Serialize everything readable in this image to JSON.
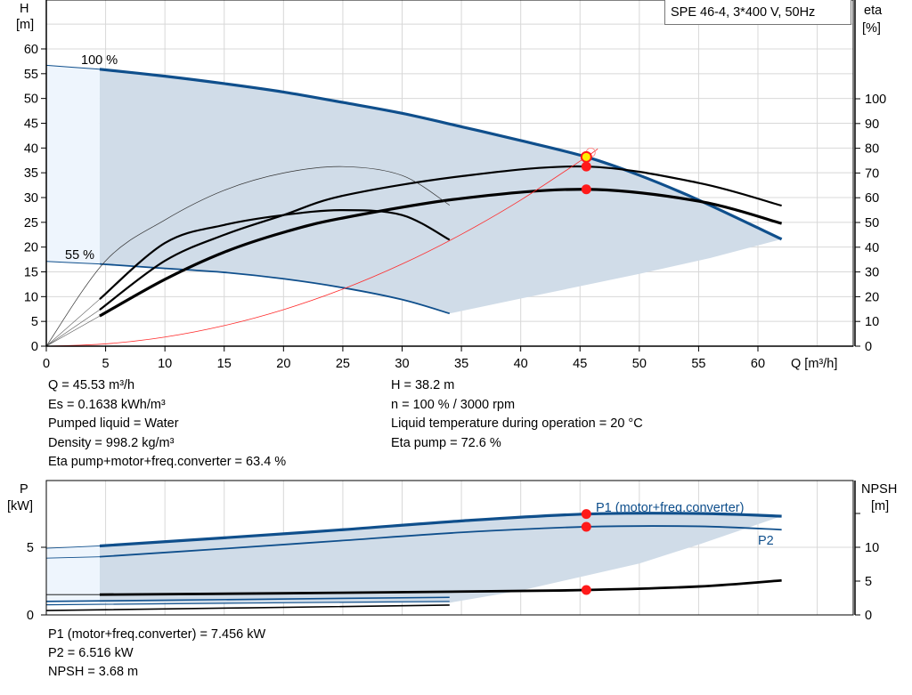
{
  "title": "SPE 46-4, 3*400 V, 50Hz",
  "colors": {
    "curve_blue": "#0f4f8c",
    "area": "#d0dce8",
    "area_light": "#eef5fd",
    "grid": "#d8d8d8",
    "system_curve": "#ff2a2a",
    "duty_point": "#ff1a1a",
    "duty_point_fill": "#ffee00"
  },
  "chart_data": [
    {
      "type": "line",
      "title": "SPE 46-4, 3*400 V, 50Hz",
      "xlabel": "Q [m³/h]",
      "ylabel": "H [m]",
      "y2label": "eta [%]",
      "xlim": [
        0,
        67
      ],
      "ylim": [
        0,
        70
      ],
      "y2lim": [
        0,
        140
      ],
      "xticks": [
        "0",
        "5",
        "10",
        "15",
        "20",
        "25",
        "30",
        "35",
        "40",
        "45",
        "50",
        "55",
        "60"
      ],
      "yticks": [
        "0",
        "5",
        "10",
        "15",
        "20",
        "25",
        "30",
        "35",
        "40",
        "45",
        "50",
        "55",
        "60"
      ],
      "y2ticks": [
        "0",
        "10",
        "20",
        "30",
        "40",
        "50",
        "60",
        "70",
        "80",
        "90",
        "100"
      ],
      "grid": true,
      "series": [
        {
          "name": "100 %",
          "axis": "H",
          "x": [
            0,
            4.5,
            10,
            15,
            20,
            25,
            30,
            35,
            40,
            45.53,
            50,
            55,
            62
          ],
          "y": [
            56.7,
            55.9,
            54.5,
            53,
            51.3,
            49.2,
            47,
            44.3,
            41.5,
            38.2,
            34.5,
            29.5,
            21.6
          ]
        },
        {
          "name": "55 %",
          "axis": "H",
          "x": [
            0,
            4.5,
            10,
            15,
            20,
            25,
            30,
            34
          ],
          "y": [
            17.1,
            16.6,
            15.7,
            14.9,
            13.6,
            11.8,
            9.4,
            6.6
          ]
        },
        {
          "axis": "eta",
          "x": [
            4.5,
            10,
            15,
            20,
            25,
            35,
            45.53,
            55,
            62
          ],
          "y": [
            14.7,
            34.5,
            45,
            53,
            60.8,
            68.7,
            72.6,
            66,
            56.8
          ]
        },
        {
          "axis": "eta",
          "x": [
            4.5,
            10,
            15,
            20,
            25,
            35,
            45.53,
            55,
            62
          ],
          "y": [
            12.2,
            27,
            38,
            46,
            51.8,
            59.7,
            63.4,
            58.6,
            49.6
          ]
        },
        {
          "axis": "eta",
          "x": [
            4.5,
            10,
            15,
            20,
            25,
            30,
            34
          ],
          "y": [
            19,
            41.7,
            49,
            53,
            55,
            53,
            43
          ]
        },
        {
          "axis": "eta",
          "x": [
            0,
            5,
            10,
            15,
            20,
            25,
            30,
            34
          ],
          "y": [
            0,
            34.5,
            51,
            63,
            70,
            72.6,
            69,
            57
          ]
        },
        {
          "axis": "H",
          "system_curve": true,
          "x": [
            0,
            5,
            10,
            15,
            20,
            25,
            30,
            35,
            40,
            45.53,
            46.5
          ],
          "y": [
            0,
            0.46,
            1.84,
            4.15,
            7.37,
            11.52,
            16.59,
            22.58,
            29.49,
            38.2,
            39.85
          ]
        }
      ],
      "duty_point": {
        "Q": 45.53,
        "H": 38.2,
        "eta_pump": 72.6,
        "eta_total": 63.4
      }
    },
    {
      "type": "line",
      "ylabel": "P [kW]",
      "y2label": "NPSH [m]",
      "xlim": [
        0,
        67
      ],
      "ylim": [
        0,
        10
      ],
      "y2lim": [
        0,
        20
      ],
      "yticks": [
        "0",
        "5"
      ],
      "y2ticks": [
        "0",
        "5",
        "10"
      ],
      "grid": true,
      "series": [
        {
          "name": "P1 (motor+freq.converter)",
          "axis": "P",
          "x": [
            0,
            4.5,
            15,
            25,
            35,
            45.53,
            55,
            62
          ],
          "y": [
            4.93,
            5.1,
            5.7,
            6.3,
            6.95,
            7.456,
            7.5,
            7.3
          ]
        },
        {
          "name": "P2",
          "axis": "P",
          "x": [
            0,
            4.5,
            15,
            25,
            35,
            45.53,
            55,
            62
          ],
          "y": [
            4.2,
            4.3,
            4.9,
            5.5,
            6.1,
            6.516,
            6.55,
            6.3
          ]
        },
        {
          "axis": "NPSH",
          "x": [
            0,
            4.5,
            20,
            35,
            45.53,
            55,
            62
          ],
          "y": [
            3.0,
            3.0,
            3.2,
            3.45,
            3.68,
            4.2,
            5.1
          ]
        },
        {
          "axis": "P",
          "x": [
            0,
            34
          ],
          "y": [
            1.0,
            1.3
          ]
        },
        {
          "axis": "P",
          "x": [
            0,
            34
          ],
          "y": [
            0.75,
            1.0
          ]
        },
        {
          "axis": "NPSH",
          "x": [
            0,
            34
          ],
          "y": [
            0.65,
            1.45
          ]
        }
      ],
      "duty_point": {
        "P1": 7.456,
        "P2": 6.516,
        "NPSH": 3.68
      }
    }
  ],
  "labels": {
    "h_axis": "H",
    "h_unit": "[m]",
    "eta_axis": "eta",
    "eta_unit": "[%]",
    "q_axis": "Q [m³/h]",
    "speed_100": "100 %",
    "speed_55": "55 %",
    "p_axis": "P",
    "p_unit": "[kW]",
    "npsh_axis": "NPSH",
    "npsh_unit": "[m]",
    "p1_label": "P1 (motor+freq.converter)",
    "p2_label": "P2"
  },
  "info_top": {
    "q": "Q = 45.53 m³/h",
    "es": "Es = 0.1638 kWh/m³",
    "liquid": "Pumped liquid = Water",
    "density": "Density = 998.2 kg/m³",
    "eta_total": "Eta pump+motor+freq.converter = 63.4 %",
    "h": "H = 38.2 m",
    "n": "n = 100 % / 3000 rpm",
    "temp": "Liquid temperature during operation = 20 °C",
    "eta_pump": "Eta pump = 72.6 %"
  },
  "info_bottom": {
    "p1": "P1 (motor+freq.converter) = 7.456 kW",
    "p2": "P2 = 6.516 kW",
    "npsh": "NPSH = 3.68 m"
  }
}
